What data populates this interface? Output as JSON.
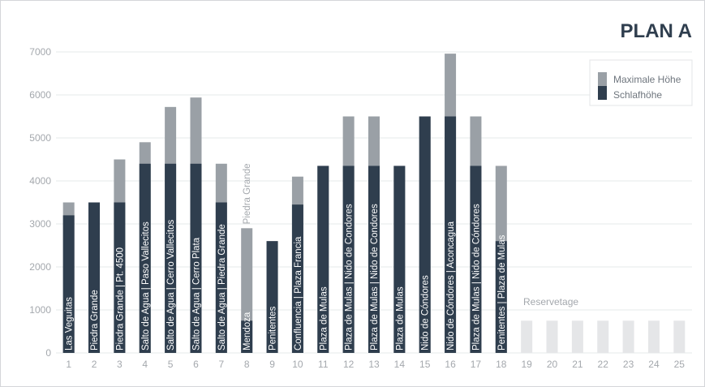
{
  "chart_data": {
    "type": "bar",
    "title": "PLAN A",
    "xlabel": "",
    "ylabel": "",
    "ylim": [
      0,
      7000
    ],
    "yticks": [
      0,
      1000,
      2000,
      3000,
      4000,
      5000,
      6000,
      7000
    ],
    "categories": [
      "1",
      "2",
      "3",
      "4",
      "5",
      "6",
      "7",
      "8",
      "9",
      "10",
      "11",
      "12",
      "13",
      "14",
      "15",
      "16",
      "17",
      "18",
      "19",
      "20",
      "21",
      "22",
      "23",
      "24",
      "25"
    ],
    "legend_position": "top-right",
    "grid": true,
    "colors": {
      "max_height": "#9aa0a6",
      "sleep_height": "#2f3e4e",
      "reserve": "#e5e6e8",
      "title": "#2f3e4e"
    },
    "series": [
      {
        "name": "Maximale Höhe",
        "values": [
          3500,
          3500,
          4500,
          4900,
          5720,
          5940,
          4400,
          2900,
          2600,
          4100,
          4350,
          5500,
          5500,
          4350,
          5500,
          6960,
          5500,
          4350,
          null,
          null,
          null,
          null,
          null,
          null,
          null
        ]
      },
      {
        "name": "Schlafhöhe",
        "values": [
          3200,
          3500,
          3500,
          4400,
          4400,
          4400,
          3500,
          750,
          2600,
          3450,
          4350,
          4350,
          4350,
          4350,
          5500,
          5500,
          4350,
          2600,
          null,
          null,
          null,
          null,
          null,
          null,
          null
        ]
      }
    ],
    "bar_labels": [
      "Las Veguitas",
      "Piedra Grande",
      "Piedra Grande | Pt. 4500",
      "Salto de Agua | Paso Vallecitos",
      "Salto de Agua | Cerro Vallecitos",
      "Salto de Agua | Cerro Plata",
      "Salto de Agua | Piedra Grande",
      "Mendoza",
      "Penitentes",
      "Confluencia | Plaza Francia",
      "Plaza de Mulas",
      "Plaza de Mulas | Nido de Condores",
      "Plaza de Mulas | Nido de Condores",
      "Plaza de Mulas",
      "Nido de Cóndores",
      "Nido de Cóndores | Aconcagua",
      "Plaza de Mulas | Nido de Cóndores",
      "Penitentes | Plaza de Mulas",
      "",
      "",
      "",
      "",
      "",
      "",
      ""
    ],
    "annotations": {
      "piedra_grande": "Piedra Grande",
      "reserve": "Reservetage"
    },
    "reserve": {
      "days": [
        19,
        20,
        21,
        22,
        23,
        24,
        25
      ],
      "value": 750
    }
  }
}
